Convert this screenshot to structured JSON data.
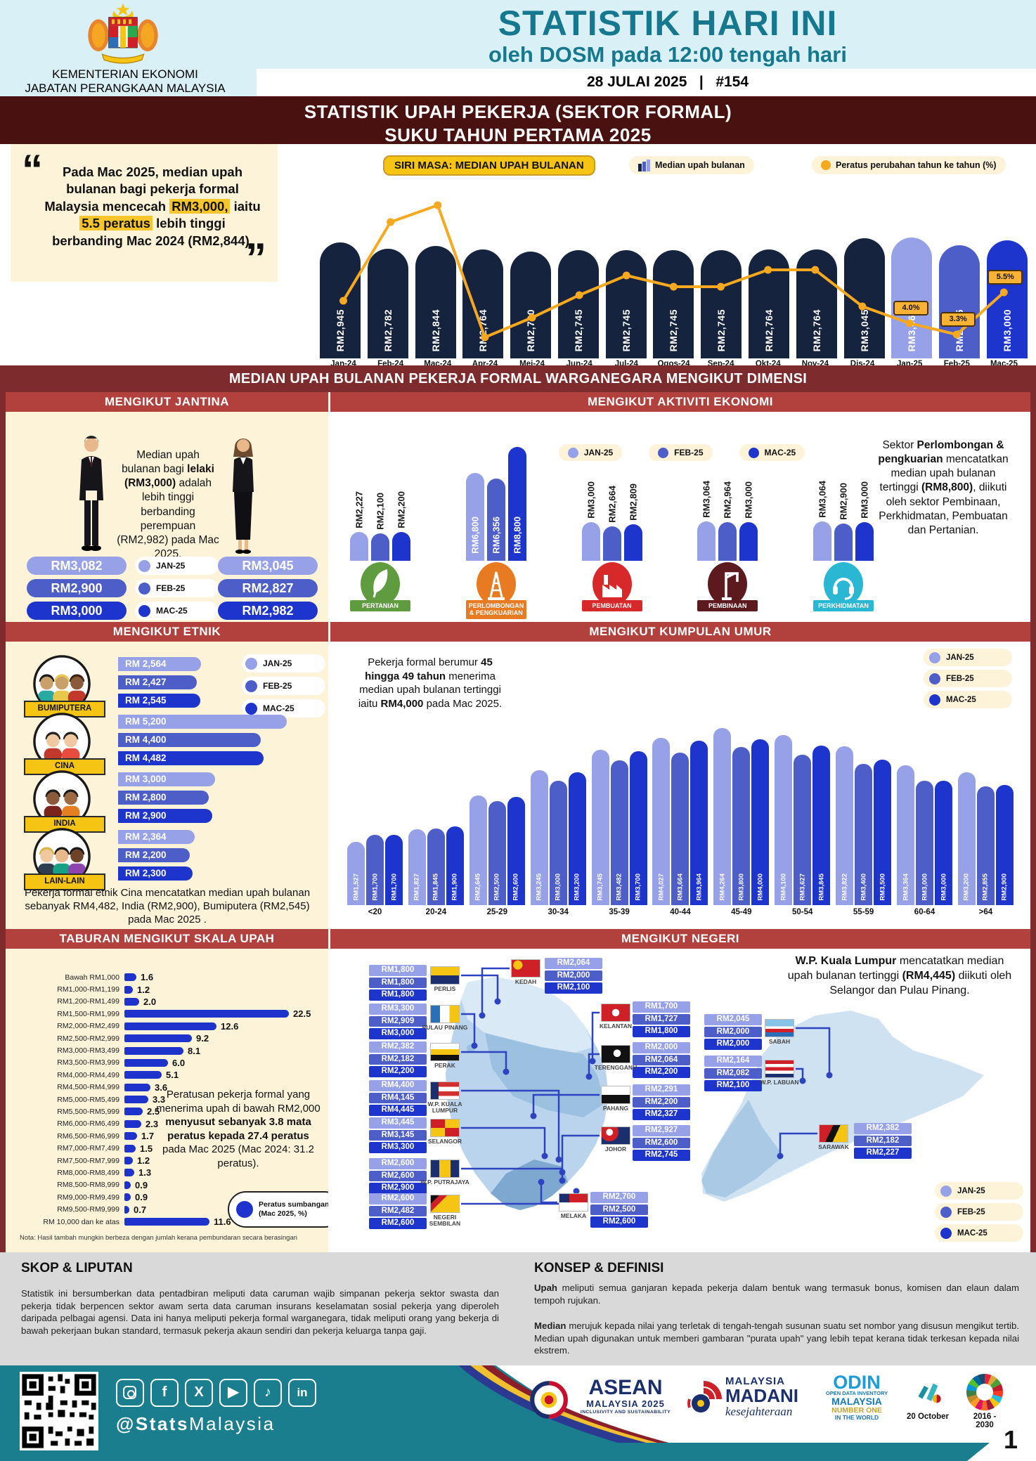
{
  "header": {
    "agency1": "KEMENTERIAN EKONOMI",
    "agency2": "JABATAN PERANGKAAN MALAYSIA",
    "title": "STATISTIK HARI INI",
    "subtitle": "oleh DOSM pada 12:00 tengah hari",
    "date": "28 JULAI 2025",
    "sep": "|",
    "issue": "#154"
  },
  "banner": {
    "line1": "STATISTIK UPAH PEKERJA (SEKTOR FORMAL)",
    "line2": "SUKU TAHUN PERTAMA 2025"
  },
  "quote": {
    "open": "“",
    "close": "”",
    "segments": [
      {
        "t": "Pada Mac 2025, median upah bulanan bagi pekerja formal Malaysia mencecah ",
        "s": "n"
      },
      {
        "t": "RM3,000,",
        "s": "h"
      },
      {
        "t": " iaitu ",
        "s": "n"
      },
      {
        "t": "5.5 peratus",
        "s": "h"
      },
      {
        "t": " lebih tinggi berbanding Mac 2024 (RM2,844).",
        "s": "n"
      }
    ]
  },
  "months": {
    "labels": [
      "JAN-25",
      "FEB-25",
      "MAC-25"
    ]
  },
  "colors": {
    "jan": "#96a1e8",
    "feb": "#4d5ec9",
    "mac": "#1e35cd",
    "navy": "#15233f",
    "orange": "#f6a91e",
    "header_red": "#b2403d",
    "maroon_band": "#7d2b2c",
    "maroon_dark": "#491210",
    "cream": "#fdf3d8",
    "teal": "#16788e",
    "footer_teal": "#1a7e8f",
    "yellow": "#f6c412",
    "bar_blue": "#1d33cb"
  },
  "sections": {
    "series": {
      "tag": "SIRI MASA: MEDIAN UPAH BULANAN",
      "legend_bar": "Median upah bulanan",
      "legend_line": "Peratus perubahan tahun ke tahun (%)"
    },
    "dimension_band": "MEDIAN UPAH BULANAN PEKERJA FORMAL WARGANEGARA MENGIKUT DIMENSI",
    "jantina": {
      "title": "MENGIKUT JANTINA",
      "text_segments": [
        {
          "t": "Median upah bulanan bagi ",
          "s": "n"
        },
        {
          "t": "lelaki (RM3,000)",
          "s": "b"
        },
        {
          "t": " adalah lebih tinggi berbanding perempuan (RM2,982) pada Mac 2025.",
          "s": "n"
        }
      ]
    },
    "ekonomi": {
      "title": "MENGIKUT AKTIVITI EKONOMI",
      "note_segments": [
        {
          "t": "Sektor ",
          "s": "n"
        },
        {
          "t": "Perlombongan & pengkuarian",
          "s": "b"
        },
        {
          "t": " mencatatkan median upah bulanan tertinggi ",
          "s": "n"
        },
        {
          "t": "(RM8,800)",
          "s": "b"
        },
        {
          "t": ", diikuti oleh sektor Pembinaan, Perkhidmatan, Pembuatan dan Pertanian.",
          "s": "n"
        }
      ]
    },
    "etnik": {
      "title": "MENGIKUT ETNIK",
      "caption": "Pekerja formal etnik Cina mencatatkan median upah bulanan sebanyak RM4,482, India (RM2,900), Bumiputera (RM2,545) pada Mac 2025 ."
    },
    "umur": {
      "title": "MENGIKUT KUMPULAN UMUR",
      "text_segments": [
        {
          "t": "Pekerja formal berumur ",
          "s": "n"
        },
        {
          "t": "45 hingga 49 tahun",
          "s": "b"
        },
        {
          "t": " menerima median upah bulanan tertinggi iaitu ",
          "s": "n"
        },
        {
          "t": "RM4,000",
          "s": "b"
        },
        {
          "t": " pada Mac 2025.",
          "s": "n"
        }
      ]
    },
    "skala": {
      "title": "TABURAN MENGIKUT SKALA UPAH",
      "text_segments": [
        {
          "t": "Peratusan pekerja formal yang menerima upah di bawah RM2,000 ",
          "s": "n"
        },
        {
          "t": "menyusut sebanyak 3.8 mata peratus kepada 27.4 peratus",
          "s": "b"
        },
        {
          "t": " pada Mac 2025 (Mac 2024: 31.2 peratus).",
          "s": "n"
        }
      ],
      "legend_line1": "Peratus sumbangan",
      "legend_line2": "(Mac 2025, %)",
      "note": "Nota: Hasil tambah mungkin berbeza dengan jumlah kerana pembundaran secara berasingan"
    },
    "negeri": {
      "title": "MENGIKUT NEGERI",
      "text_segments": [
        {
          "t": "W.P. Kuala Lumpur",
          "s": "b"
        },
        {
          "t": " mencatatkan median upah bulanan tertinggi ",
          "s": "n"
        },
        {
          "t": "(RM4,445)",
          "s": "b"
        },
        {
          "t": " diikuti oleh Selangor dan Pulau Pinang.",
          "s": "n"
        }
      ]
    },
    "skop": {
      "title": "SKOP & LIPUTAN",
      "body": "Statistik ini bersumberkan data pentadbiran meliputi data caruman wajib simpanan pekerja sektor swasta dan pekerja tidak berpencen sektor awam serta data caruman insurans keselamatan sosial pekerja yang diperoleh daripada pelbagai agensi. Data ini hanya meliputi pekerja formal warganegara, tidak meliputi orang yang bekerja di bawah pekerjaan bukan standard, termasuk pekerja akaun sendiri dan pekerja keluarga tanpa gaji."
    },
    "konsep": {
      "title": "KONSEP & DEFINISI",
      "p1": [
        {
          "t": "Upah",
          "s": "b"
        },
        {
          "t": " meliputi semua ganjaran kepada pekerja dalam bentuk wang termasuk bonus, komisen dan elaun dalam tempoh rujukan.",
          "s": "n"
        }
      ],
      "p2": [
        {
          "t": "Median",
          "s": "b"
        },
        {
          "t": " merujuk kepada nilai yang terletak di tengah-tengah susunan suatu set nombor yang disusun mengikut tertib. Median upah digunakan untuk memberi gambaran \"purata upah\" yang lebih tepat kerana tidak terkesan kepada nilai ekstrem.",
          "s": "n"
        }
      ]
    }
  },
  "chart_data": [
    {
      "type": "bar",
      "name": "siri-masa",
      "title": "SIRI MASA: MEDIAN UPAH BULANAN",
      "categories": [
        "Jan-24",
        "Feb-24",
        "Mac-24",
        "Apr-24",
        "Mei-24",
        "Jun-24",
        "Jul-24",
        "Ogos-24",
        "Sep-24",
        "Okt-24",
        "Nov-24",
        "Dis-24",
        "Jan-25",
        "Feb-25",
        "Mac-25"
      ],
      "values": [
        2945,
        2782,
        2844,
        2764,
        2700,
        2745,
        2745,
        2745,
        2745,
        2764,
        2764,
        3045,
        3064,
        2875,
        3000
      ],
      "value_labels": [
        "RM2,945",
        "RM2,782",
        "RM2,844",
        "RM2,764",
        "RM2,700",
        "RM2,745",
        "RM2,745",
        "RM2,745",
        "RM2,745",
        "RM2,764",
        "RM2,764",
        "RM3,045",
        "RM3,064",
        "RM2,875",
        "RM3,000"
      ],
      "line_series": "Peratus perubahan tahun ke tahun (%)",
      "yoy_labeled": [
        {
          "month": "Jan-25",
          "label": "4.0%"
        },
        {
          "month": "Feb-25",
          "label": "3.3%"
        },
        {
          "month": "Mac-25",
          "label": "5.5%"
        }
      ],
      "legend": [
        "Median upah bulanan",
        "Peratus perubahan tahun ke tahun (%)"
      ]
    },
    {
      "type": "table",
      "name": "jantina",
      "months": [
        "JAN-25",
        "FEB-25",
        "MAC-25"
      ],
      "male": {
        "labels": [
          "RM3,082",
          "RM2,900",
          "RM3,000"
        ],
        "values": [
          3082,
          2900,
          3000
        ]
      },
      "female": {
        "labels": [
          "RM3,045",
          "RM2,827",
          "RM2,982"
        ],
        "values": [
          3045,
          2827,
          2982
        ]
      }
    },
    {
      "type": "bar",
      "name": "aktiviti-ekonomi",
      "series_months": [
        "JAN-25",
        "FEB-25",
        "MAC-25"
      ],
      "groups": [
        {
          "name": "PERTANIAN",
          "icon": "agriculture",
          "color": "#5e9c3f",
          "values": [
            2227,
            2100,
            2200
          ],
          "labels": [
            "RM2,227",
            "RM2,100",
            "RM2,200"
          ]
        },
        {
          "name": "PERLOMBONGAN & PENGKUARIAN",
          "icon": "mining",
          "color": "#e87a22",
          "values": [
            6800,
            6356,
            8800
          ],
          "labels": [
            "RM6,800",
            "RM6,356",
            "RM8,800"
          ]
        },
        {
          "name": "PEMBUATAN",
          "icon": "manufacturing",
          "color": "#d7282a",
          "values": [
            3000,
            2664,
            2809
          ],
          "labels": [
            "RM3,000",
            "RM2,664",
            "RM2,809"
          ]
        },
        {
          "name": "PEMBINAAN",
          "icon": "construction",
          "color": "#5c1a1e",
          "values": [
            3064,
            2964,
            3000
          ],
          "labels": [
            "RM3,064",
            "RM2,964",
            "RM3,000"
          ]
        },
        {
          "name": "PERKHIDMATAN",
          "icon": "services",
          "color": "#29b7d3",
          "values": [
            3064,
            2900,
            3000
          ],
          "labels": [
            "RM3,064",
            "RM2,900",
            "RM3,000"
          ]
        }
      ]
    },
    {
      "type": "bar-horizontal",
      "name": "etnik",
      "series_months": [
        "JAN-25",
        "FEB-25",
        "MAC-25"
      ],
      "groups": [
        {
          "name": "BUMIPUTERA",
          "values": [
            2564,
            2427,
            2545
          ],
          "labels": [
            "RM 2,564",
            "RM 2,427",
            "RM 2,545"
          ]
        },
        {
          "name": "CINA",
          "values": [
            5200,
            4400,
            4482
          ],
          "labels": [
            "RM 5,200",
            "RM 4,400",
            "RM 4,482"
          ]
        },
        {
          "name": "INDIA",
          "values": [
            3000,
            2800,
            2900
          ],
          "labels": [
            "RM 3,000",
            "RM 2,800",
            "RM 2,900"
          ]
        },
        {
          "name": "LAIN-LAIN",
          "values": [
            2364,
            2200,
            2300
          ],
          "labels": [
            "RM 2,364",
            "RM 2,200",
            "RM 2,300"
          ]
        }
      ]
    },
    {
      "type": "bar",
      "name": "kumpulan-umur",
      "categories": [
        "<20",
        "20-24",
        "25-29",
        "30-34",
        "35-39",
        "40-44",
        "45-49",
        "50-54",
        "55-59",
        "60-64",
        ">64"
      ],
      "series": [
        {
          "name": "JAN-25",
          "values": [
            1527,
            1827,
            2645,
            3245,
            3745,
            4027,
            4264,
            4100,
            3822,
            3364,
            3200
          ],
          "labels": [
            "RM1,527",
            "RM1,827",
            "RM2,645",
            "RM3,245",
            "RM3,745",
            "RM4,027",
            "RM4,264",
            "RM4,100",
            "RM3,822",
            "RM3,364",
            "RM3,200"
          ]
        },
        {
          "name": "FEB-25",
          "values": [
            1700,
            1845,
            2500,
            3000,
            3482,
            3664,
            3800,
            3627,
            3400,
            3000,
            2855
          ],
          "labels": [
            "RM1,700",
            "RM1,845",
            "RM2,500",
            "RM3,000",
            "RM3,482",
            "RM3,664",
            "RM3,800",
            "RM3,627",
            "RM3,400",
            "RM3,000",
            "RM2,855"
          ]
        },
        {
          "name": "MAC-25",
          "values": [
            1700,
            1900,
            2600,
            3200,
            3700,
            3964,
            4000,
            3845,
            3500,
            3000,
            2900
          ],
          "labels": [
            "RM1,700",
            "RM1,900",
            "RM2,600",
            "RM3,200",
            "RM3,700",
            "RM3,964",
            "RM4,000",
            "RM3,845",
            "RM3,500",
            "RM3,000",
            "RM2,900"
          ]
        }
      ]
    },
    {
      "type": "bar-horizontal",
      "name": "skala-upah",
      "categories": [
        "Bawah RM1,000",
        "RM1,000-RM1,199",
        "RM1,200-RM1,499",
        "RM1,500-RM1,999",
        "RM2,000-RM2,499",
        "RM2,500-RM2,999",
        "RM3,000-RM3,499",
        "RM3,500-RM3,999",
        "RM4,000-RM4,499",
        "RM4,500-RM4,999",
        "RM5,000-RM5,499",
        "RM5,500-RM5,999",
        "RM6,000-RM6,499",
        "RM6,500-RM6,999",
        "RM7,000-RM7,499",
        "RM7,500-RM7,999",
        "RM8,000-RM8,499",
        "RM8,500-RM8,999",
        "RM9,000-RM9,499",
        "RM9,500-RM9,999",
        "RM 10,000 dan ke atas"
      ],
      "values": [
        1.6,
        1.2,
        2.0,
        22.5,
        12.6,
        9.2,
        8.1,
        6.0,
        5.1,
        3.6,
        3.3,
        2.5,
        2.3,
        1.7,
        1.5,
        1.2,
        1.3,
        0.9,
        0.9,
        0.7,
        11.6
      ],
      "labels": [
        "1.6",
        "1.2",
        "2.0",
        "22.5",
        "12.6",
        "9.2",
        "8.1",
        "6.0",
        "5.1",
        "3.6",
        "3.3",
        "2.5",
        "2.3",
        "1.7",
        "1.5",
        "1.2",
        "1.3",
        "0.9",
        "0.9",
        "0.7",
        "11.6"
      ]
    },
    {
      "type": "table",
      "name": "negeri",
      "series_months": [
        "JAN-25",
        "FEB-25",
        "MAC-25"
      ],
      "states": [
        {
          "name": "PERLIS",
          "labels": [
            "RM1,800",
            "RM1,800",
            "RM1,800"
          ],
          "flag": "linear-gradient(#f6c412 0 50%, #1b2f6e 50% 100%)"
        },
        {
          "name": "KEDAH",
          "labels": [
            "RM2,064",
            "RM2,000",
            "RM2,100"
          ],
          "flag": "radial-gradient(circle at 22% 30%, #f6c412 0 18%, #cf2027 19%)"
        },
        {
          "name": "PULAU PINANG",
          "labels": [
            "RM3,300",
            "RM2,909",
            "RM3,000"
          ],
          "flag": "linear-gradient(90deg,#2a6fb8 0 33%,#fff 33% 66%,#f6c412 66%)"
        },
        {
          "name": "KELANTAN",
          "labels": [
            "RM1,700",
            "RM1,727",
            "RM1,800"
          ],
          "flag": "radial-gradient(circle at 50% 50%, #fff 0 22%, #cf2027 23%)"
        },
        {
          "name": "PERAK",
          "labels": [
            "RM2,382",
            "RM2,182",
            "RM2,200"
          ],
          "flag": "linear-gradient(#fff 0 33%, #f6c412 33% 66%, #111 66%)"
        },
        {
          "name": "TERENGGANU",
          "labels": [
            "RM2,000",
            "RM2,064",
            "RM2,200"
          ],
          "flag": "radial-gradient(circle at 55% 45%, #fff 0 20%, #111 21%)"
        },
        {
          "name": "W.P. KUALA LUMPUR",
          "labels": [
            "RM4,400",
            "RM4,145",
            "RM4,445"
          ],
          "flag": "linear-gradient(90deg,#1b2f6e 0 28%,rgba(0,0,0,0) 28%) 0 0/100% 100% no-repeat, repeating-linear-gradient(#d03030 0 6.5px, #fff 6.5px 13px)"
        },
        {
          "name": "PAHANG",
          "labels": [
            "RM2,291",
            "RM2,200",
            "RM2,327"
          ],
          "flag": "linear-gradient(#fff 0 50%, #111 50%)"
        },
        {
          "name": "SELANGOR",
          "labels": [
            "RM3,445",
            "RM3,145",
            "RM3,300"
          ],
          "flag": "conic-gradient(#f6c412 0 25%, #cf2027 0 50%, #f6c412 0 75%, #cf2027 0)"
        },
        {
          "name": "JOHOR",
          "labels": [
            "RM2,927",
            "RM2,600",
            "RM2,745"
          ],
          "flag": "radial-gradient(circle at 28% 30%, #fff 0 14%, #cf2027 15% 38%, #1b2f6e 39%)"
        },
        {
          "name": "W.P. PUTRAJAYA",
          "labels": [
            "RM2,600",
            "RM2,600",
            "RM2,900"
          ],
          "flag": "linear-gradient(90deg,#1b2f6e 0 30%, #f6c412 30% 70%, #1b2f6e 70%)"
        },
        {
          "name": "NEGERI SEMBILAN",
          "labels": [
            "RM2,600",
            "RM2,482",
            "RM2,600"
          ],
          "flag": "linear-gradient(135deg, #111 0 18%, #cf2027 18% 36%, #f6c412 36%)"
        },
        {
          "name": "MELAKA",
          "labels": [
            "RM2,700",
            "RM2,500",
            "RM2,600"
          ],
          "flag": "linear-gradient(90deg,#1b2f6e 0 35%,rgba(0,0,0,0) 35%) 0 0/100% 50% no-repeat, linear-gradient(#cf2027 0 50%, #fff 50%)"
        },
        {
          "name": "SABAH",
          "labels": [
            "RM2,045",
            "RM2,000",
            "RM2,000"
          ],
          "flag": "linear-gradient(#88c3e8 0 40%, #fff 40% 55%, #cf2027 55% 75%, #2a6fb8 75%)"
        },
        {
          "name": "W.P. LABUAN",
          "labels": [
            "RM2,164",
            "RM2,082",
            "RM2,100"
          ],
          "flag": "linear-gradient(#cf2027 0 20%, #fff 20% 40%, #cf2027 40% 60%, #fff 60% 80%, #1b2f6e 80%)"
        },
        {
          "name": "SARAWAK",
          "labels": [
            "RM2,382",
            "RM2,182",
            "RM2,227"
          ],
          "flag": "linear-gradient(115deg, #cf2027 0 38%, #111 38% 58%, #f6c412 58%)"
        }
      ]
    }
  ],
  "footer": {
    "handle_bold": "@Stats",
    "handle_light": "Malaysia",
    "page": "1",
    "socials": [
      "instagram",
      "facebook",
      "x",
      "youtube",
      "tiktok",
      "linkedin"
    ],
    "asean": {
      "l1": "ASEAN",
      "l2": "MALAYSIA 2025",
      "l3": "INCLUSIVITY AND SUSTAINABILITY"
    },
    "madani": {
      "l1": "MALAYSIA",
      "l2": "MADANI",
      "l3": "kesejahteraan"
    },
    "odin": {
      "l1": "ODIN",
      "l2": "OPEN DATA INVENTORY",
      "l3": "MALAYSIA",
      "l4": "NUMBER ONE",
      "l5": "IN THE WORLD"
    },
    "oct": "20 October",
    "sdg": "2016 - 2030"
  }
}
